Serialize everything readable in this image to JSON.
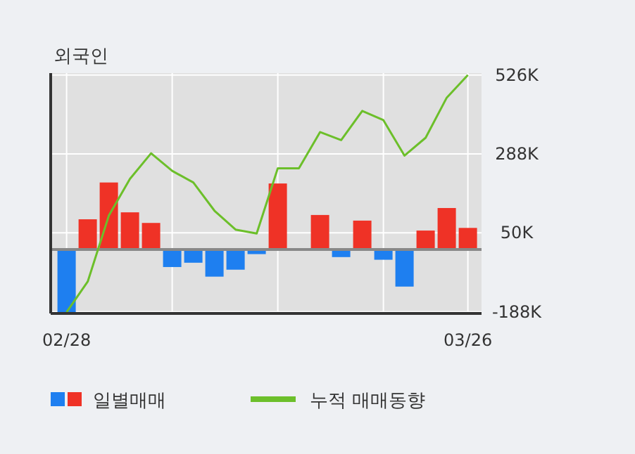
{
  "chart_data": {
    "type": "bar",
    "title": "외국인",
    "categories": [
      "02/28",
      null,
      null,
      null,
      null,
      null,
      null,
      null,
      null,
      null,
      null,
      null,
      null,
      null,
      null,
      null,
      null,
      null,
      null,
      "03/26"
    ],
    "series": [
      {
        "name": "일별매매",
        "colors": [
          "#1e7ff0",
          "#ef3226",
          "#ef3226",
          "#ef3226",
          "#ef3226",
          "#1e7ff0",
          "#1e7ff0",
          "#1e7ff0",
          "#1e7ff0",
          "#1e7ff0",
          "#ef3226",
          "#ef3226",
          "#ef3226",
          "#1e7ff0",
          "#ef3226",
          "#1e7ff0",
          "#1e7ff0",
          "#ef3226",
          "#ef3226",
          "#ef3226"
        ],
        "values": [
          -189,
          91,
          202,
          112,
          80,
          -53,
          -40,
          -82,
          -61,
          -14,
          199,
          0,
          104,
          -23,
          87,
          -31,
          -112,
          57,
          125,
          65
        ]
      },
      {
        "name": "누적 매매동향",
        "type": "line",
        "color": "#6cbf2a",
        "values": [
          -189,
          -97,
          102,
          213,
          290,
          237,
          202,
          117,
          60,
          48,
          245,
          245,
          354,
          330,
          418,
          390,
          283,
          337,
          458,
          526
        ]
      }
    ],
    "ylim": [
      -193,
      532
    ],
    "yticks": [
      {
        "value": 526,
        "label": "526K"
      },
      {
        "value": 288,
        "label": "288K"
      },
      {
        "value": 50,
        "label": "50K"
      },
      {
        "value": -188,
        "label": "-188K"
      }
    ],
    "grid": true,
    "legend": "bottom"
  }
}
